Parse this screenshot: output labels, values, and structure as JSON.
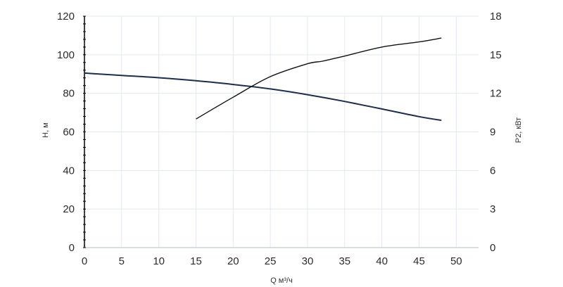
{
  "chart_data": {
    "type": "line",
    "xlabel": "Q м³/ч",
    "ylabel": "H, м",
    "y2label": "P2, кВт",
    "xlim": [
      0,
      53
    ],
    "ylim": [
      0,
      120
    ],
    "y2lim": [
      0,
      18
    ],
    "x_ticks": [
      0,
      5,
      10,
      15,
      20,
      25,
      30,
      35,
      40,
      45,
      50
    ],
    "y_ticks": [
      0,
      20,
      40,
      60,
      80,
      100,
      120
    ],
    "y2_ticks": [
      0,
      3,
      6,
      9,
      12,
      15,
      18
    ],
    "grid": true,
    "colors": {
      "head": "#1c2e4a",
      "power": "#111111",
      "grid": "#e3e8ee",
      "axis": "#000000"
    },
    "series": [
      {
        "axis": "left",
        "x": [
          0,
          5,
          10,
          15,
          20,
          25,
          30,
          35,
          40,
          45,
          48
        ],
        "y": [
          90.5,
          89.3,
          88.1,
          86.5,
          84.6,
          82.3,
          79.3,
          75.8,
          71.9,
          67.9,
          66.0
        ]
      },
      {
        "axis": "right",
        "x": [
          15,
          20,
          25,
          30,
          32,
          35,
          40,
          45,
          48
        ],
        "y": [
          10.0,
          11.7,
          13.3,
          14.3,
          14.5,
          14.9,
          15.6,
          16.0,
          16.3
        ]
      }
    ]
  }
}
